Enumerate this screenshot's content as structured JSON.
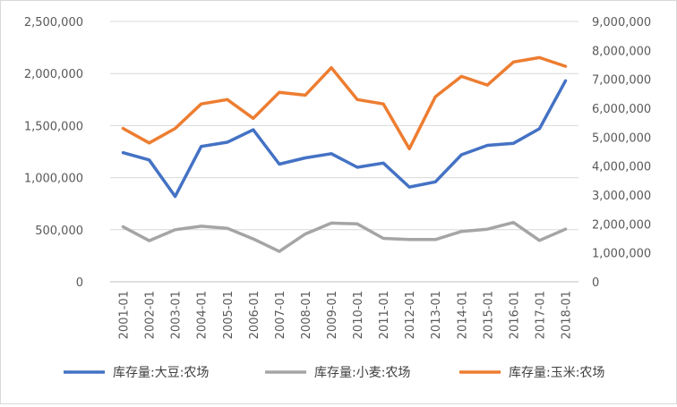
{
  "chart_data": {
    "type": "line",
    "title": "",
    "xlabel": "",
    "ylabel": "",
    "categories": [
      "2001-01",
      "2002-01",
      "2003-01",
      "2004-01",
      "2005-01",
      "2006-01",
      "2007-01",
      "2008-01",
      "2009-01",
      "2010-01",
      "2011-01",
      "2012-01",
      "2013-01",
      "2014-01",
      "2015-01",
      "2016-01",
      "2017-01",
      "2018-01"
    ],
    "y_left": {
      "ylim": [
        0,
        2500000
      ],
      "ticks": [
        0,
        500000,
        1000000,
        1500000,
        2000000,
        2500000
      ],
      "tick_labels": [
        "0",
        "500,000",
        "1,000,000",
        "1,500,000",
        "2,000,000",
        "2,500,000"
      ]
    },
    "y_right": {
      "ylim": [
        0,
        9000000
      ],
      "ticks": [
        0,
        1000000,
        2000000,
        3000000,
        4000000,
        5000000,
        6000000,
        7000000,
        8000000,
        9000000
      ],
      "tick_labels": [
        "0",
        "1,000,000",
        "2,000,000",
        "3,000,000",
        "4,000,000",
        "5,000,000",
        "6,000,000",
        "7,000,000",
        "8,000,000",
        "9,000,000"
      ]
    },
    "grid": true,
    "legend_position": "bottom",
    "series": [
      {
        "name": "库存量:大豆:农场",
        "axis": "left",
        "color": "#4472c4",
        "values": [
          1240000,
          1170000,
          820000,
          1300000,
          1340000,
          1460000,
          1130000,
          1190000,
          1230000,
          1100000,
          1140000,
          910000,
          960000,
          1220000,
          1310000,
          1330000,
          1470000,
          1930000
        ]
      },
      {
        "name": "库存量:小麦:农场",
        "axis": "right",
        "color": "#a5a5a5",
        "values": [
          1900000,
          1420000,
          1800000,
          1920000,
          1850000,
          1480000,
          1050000,
          1650000,
          2030000,
          2000000,
          1500000,
          1460000,
          1460000,
          1740000,
          1820000,
          2050000,
          1430000,
          1820000
        ]
      },
      {
        "name": "库存量:玉米:农场",
        "axis": "right",
        "color": "#ed7d31",
        "values": [
          5300000,
          4800000,
          5300000,
          6150000,
          6300000,
          5650000,
          6550000,
          6450000,
          7400000,
          6300000,
          6150000,
          4600000,
          6400000,
          7100000,
          6800000,
          7600000,
          7750000,
          7450000
        ]
      }
    ]
  }
}
